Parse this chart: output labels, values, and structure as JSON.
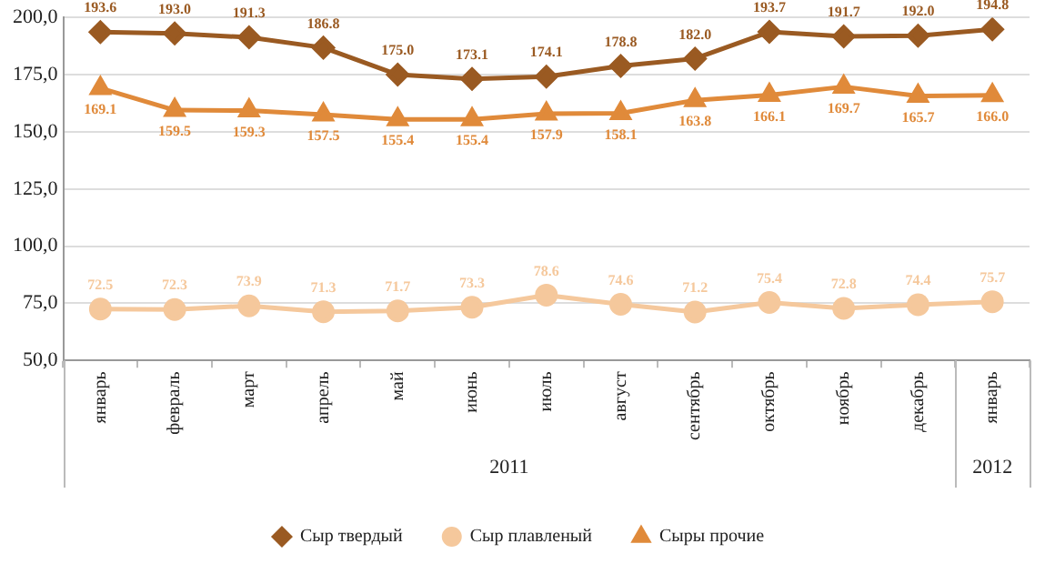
{
  "chart_data": {
    "type": "line",
    "categories": [
      "январь",
      "февраль",
      "март",
      "апрель",
      "май",
      "июнь",
      "июль",
      "август",
      "сентябрь",
      "октябрь",
      "ноябрь",
      "декабрь",
      "январь"
    ],
    "series": [
      {
        "name": "Сыр твердый",
        "color": "#9a5a22",
        "marker": "diamond",
        "values": [
          193.6,
          193.0,
          191.3,
          186.8,
          175.0,
          173.1,
          174.1,
          178.8,
          182.0,
          193.7,
          191.7,
          192.0,
          194.8
        ],
        "value_labels": [
          "193.6",
          "193.0",
          "191.3",
          "186.8",
          "175.0",
          "173.1",
          "174.1",
          "178.8",
          "182.0",
          "193.7",
          "191.7",
          "192.0",
          "194.8"
        ]
      },
      {
        "name": "Сыр плавленый",
        "color": "#f5c89c",
        "marker": "circle",
        "values": [
          72.5,
          72.3,
          73.9,
          71.3,
          71.7,
          73.3,
          78.6,
          74.6,
          71.2,
          75.4,
          72.8,
          74.4,
          75.7
        ],
        "value_labels": [
          "72.5",
          "72.3",
          "73.9",
          "71.3",
          "71.7",
          "73.3",
          "78.6",
          "74.6",
          "71.2",
          "75.4",
          "72.8",
          "74.4",
          "75.7"
        ]
      },
      {
        "name": "Сыры прочие",
        "color": "#e08a3a",
        "marker": "triangle",
        "values": [
          169.1,
          159.5,
          159.3,
          157.5,
          155.4,
          155.4,
          157.9,
          158.1,
          163.8,
          166.1,
          169.7,
          165.7,
          166.0
        ],
        "value_labels": [
          "169.1",
          "159.5",
          "159.3",
          "157.5",
          "155.4",
          "155.4",
          "157.9",
          "158.1",
          "163.8",
          "166.1",
          "169.7",
          "165.7",
          "166.0"
        ]
      }
    ],
    "ylim": [
      50,
      200
    ],
    "yticks": [
      {
        "value": 50,
        "label": "50,0"
      },
      {
        "value": 75,
        "label": "75,0"
      },
      {
        "value": 100,
        "label": "100,0"
      },
      {
        "value": 125,
        "label": "125,0"
      },
      {
        "value": 150,
        "label": "150,0"
      },
      {
        "value": 175,
        "label": "175,0"
      },
      {
        "value": 200,
        "label": "200,0"
      }
    ],
    "grid": "y",
    "legend": "bottom",
    "annotations": [
      "2011",
      "2012"
    ]
  }
}
